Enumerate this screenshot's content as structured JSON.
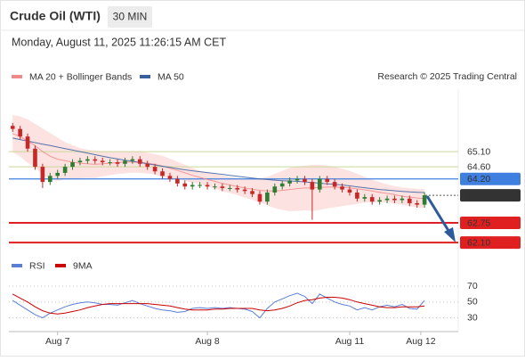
{
  "header": {
    "title": "Crude Oil (WTI)",
    "interval": "30 MIN",
    "datetime": "Monday, August 11, 2025 11:26:15 AM CET",
    "credit": "Research © 2025 Trading Central"
  },
  "chart_data": [
    {
      "type": "candlestick",
      "up_color": "#2e7d32",
      "down_color": "#c62828",
      "xlim": [
        -0.5,
        59.5
      ],
      "ylim": [
        61.72,
        66.87
      ],
      "open": [
        65.95,
        65.85,
        65.6,
        65.2,
        64.6,
        64.1,
        64.3,
        64.4,
        64.6,
        64.75,
        64.8,
        64.85,
        64.8,
        64.75,
        64.75,
        64.7,
        64.8,
        64.85,
        64.7,
        64.6,
        64.45,
        64.3,
        64.2,
        64.05,
        63.95,
        64.0,
        64.0,
        63.95,
        63.95,
        63.9,
        63.9,
        63.85,
        63.8,
        63.7,
        63.45,
        63.75,
        63.95,
        64.05,
        64.15,
        64.2,
        64.1,
        63.85,
        64.2,
        64.1,
        63.95,
        63.85,
        63.75,
        63.55,
        63.6,
        63.45,
        63.5,
        63.55,
        63.5,
        63.55,
        63.4,
        63.35
      ],
      "high": [
        66.05,
        65.95,
        65.7,
        65.3,
        64.7,
        64.4,
        64.5,
        64.7,
        64.85,
        64.9,
        64.95,
        64.95,
        64.9,
        64.85,
        64.85,
        64.9,
        64.95,
        64.95,
        64.8,
        64.7,
        64.55,
        64.4,
        64.3,
        64.15,
        64.1,
        64.1,
        64.1,
        64.05,
        64.05,
        64.0,
        64.0,
        63.95,
        63.9,
        63.8,
        63.85,
        64.05,
        64.15,
        64.25,
        64.3,
        64.3,
        64.2,
        64.3,
        64.3,
        64.2,
        64.05,
        63.95,
        63.85,
        63.7,
        63.7,
        63.6,
        63.65,
        63.65,
        63.65,
        63.65,
        63.5,
        63.76
      ],
      "low": [
        65.75,
        65.5,
        65.1,
        64.5,
        63.9,
        64.0,
        64.2,
        64.3,
        64.5,
        64.65,
        64.7,
        64.7,
        64.65,
        64.65,
        64.6,
        64.6,
        64.7,
        64.6,
        64.5,
        64.35,
        64.2,
        64.1,
        63.95,
        63.85,
        63.85,
        63.9,
        63.85,
        63.85,
        63.8,
        63.8,
        63.75,
        63.7,
        63.6,
        63.35,
        63.35,
        63.65,
        63.85,
        63.95,
        64.05,
        64.0,
        62.85,
        63.75,
        64.0,
        63.85,
        63.75,
        63.65,
        63.45,
        63.45,
        63.35,
        63.35,
        63.4,
        63.4,
        63.4,
        63.3,
        63.25,
        63.25
      ],
      "close": [
        65.85,
        65.6,
        65.2,
        64.6,
        64.1,
        64.3,
        64.4,
        64.6,
        64.75,
        64.8,
        64.85,
        64.8,
        64.75,
        64.75,
        64.7,
        64.8,
        64.85,
        64.7,
        64.6,
        64.45,
        64.3,
        64.2,
        64.05,
        63.95,
        64.0,
        64.0,
        63.95,
        63.95,
        63.9,
        63.9,
        63.85,
        63.8,
        63.7,
        63.45,
        63.75,
        63.95,
        64.05,
        64.15,
        64.2,
        64.1,
        63.85,
        64.2,
        64.1,
        63.95,
        63.85,
        63.75,
        63.55,
        63.6,
        63.45,
        63.5,
        63.55,
        63.5,
        63.55,
        63.4,
        63.35,
        63.66
      ],
      "series": [
        {
          "name": "MA 20 + Bollinger Bands",
          "color": "#f08a8a",
          "band_color": "#fde2e2",
          "values": [
            65.7,
            65.6,
            65.45,
            65.3,
            65.1,
            64.95,
            64.85,
            64.8,
            64.75,
            64.72,
            64.7,
            64.68,
            64.7,
            64.72,
            64.74,
            64.75,
            64.76,
            64.75,
            64.72,
            64.68,
            64.62,
            64.55,
            64.48,
            64.4,
            64.32,
            64.25,
            64.18,
            64.12,
            64.05,
            64.0,
            63.95,
            63.9,
            63.86,
            63.82,
            63.8,
            63.8,
            63.82,
            63.85,
            63.88,
            63.9,
            63.9,
            63.92,
            63.93,
            63.93,
            63.92,
            63.9,
            63.87,
            63.84,
            63.8,
            63.76,
            63.72,
            63.68,
            63.63,
            63.6,
            63.57,
            63.55
          ],
          "upper": [
            66.3,
            66.25,
            66.15,
            66.0,
            65.85,
            65.7,
            65.55,
            65.4,
            65.3,
            65.2,
            65.15,
            65.12,
            65.1,
            65.1,
            65.1,
            65.1,
            65.1,
            65.08,
            65.05,
            65.0,
            64.95,
            64.85,
            64.75,
            64.65,
            64.55,
            64.45,
            64.4,
            64.35,
            64.3,
            64.25,
            64.22,
            64.2,
            64.2,
            64.2,
            64.25,
            64.35,
            64.45,
            64.55,
            64.6,
            64.62,
            64.65,
            64.65,
            64.62,
            64.58,
            64.52,
            64.45,
            64.35,
            64.25,
            64.15,
            64.08,
            64.0,
            63.95,
            63.9,
            63.88,
            63.86,
            63.85
          ],
          "lower": [
            65.1,
            64.95,
            64.75,
            64.6,
            64.35,
            64.2,
            64.15,
            64.2,
            64.2,
            64.24,
            64.25,
            64.24,
            64.3,
            64.34,
            64.38,
            64.4,
            64.42,
            64.42,
            64.39,
            64.36,
            64.29,
            64.25,
            64.21,
            64.15,
            64.09,
            64.05,
            63.96,
            63.89,
            63.8,
            63.75,
            63.68,
            63.6,
            63.52,
            63.44,
            63.35,
            63.25,
            63.19,
            63.15,
            63.16,
            63.18,
            63.15,
            63.19,
            63.24,
            63.28,
            63.32,
            63.35,
            63.39,
            63.43,
            63.45,
            63.44,
            63.44,
            63.41,
            63.36,
            63.32,
            63.28,
            63.25
          ]
        },
        {
          "name": "MA 50",
          "color": "#3a5f9e",
          "values": [
            65.55,
            65.5,
            65.45,
            65.4,
            65.35,
            65.3,
            65.25,
            65.2,
            65.15,
            65.1,
            65.05,
            65.0,
            64.95,
            64.9,
            64.86,
            64.82,
            64.78,
            64.74,
            64.7,
            64.66,
            64.62,
            64.58,
            64.54,
            64.5,
            64.47,
            64.44,
            64.41,
            64.38,
            64.35,
            64.32,
            64.29,
            64.26,
            64.23,
            64.2,
            64.18,
            64.16,
            64.14,
            64.13,
            64.12,
            64.1,
            64.08,
            64.06,
            64.04,
            64.02,
            64.0,
            63.97,
            63.94,
            63.91,
            63.88,
            63.85,
            63.83,
            63.81,
            63.79,
            63.77,
            63.76,
            63.75
          ]
        }
      ],
      "levels": [
        {
          "value": 65.1,
          "label": "65.10",
          "color": "#7a9a2a",
          "style": "text"
        },
        {
          "value": 64.6,
          "label": "64.60",
          "color": "#7a9a2a",
          "style": "text"
        },
        {
          "value": 64.2,
          "label": "64.20",
          "color": "#3f7fe0",
          "style": "box"
        },
        {
          "value": 63.66,
          "label": "63.66",
          "color": "#333333",
          "style": "current"
        },
        {
          "value": 62.75,
          "label": "62.75",
          "color": "#e02020",
          "style": "box"
        },
        {
          "value": 62.1,
          "label": "62.10",
          "color": "#e02020",
          "style": "box"
        }
      ]
    },
    {
      "type": "line",
      "xlim": [
        -0.5,
        59.5
      ],
      "xticks": [
        {
          "value": 6,
          "label": "Aug 7"
        },
        {
          "value": 26,
          "label": "Aug 8"
        },
        {
          "value": 45,
          "label": "Aug 11"
        },
        {
          "value": 54.5,
          "label": "Aug 12"
        }
      ],
      "ylim": [
        15,
        88
      ],
      "yticks": [
        30,
        50,
        70
      ],
      "series": [
        {
          "name": "RSI",
          "color": "#5b7fd6",
          "values": [
            52,
            46,
            40,
            34,
            30,
            36,
            40,
            44,
            47,
            49,
            50,
            49,
            47,
            47,
            46,
            49,
            52,
            48,
            45,
            42,
            40,
            39,
            37,
            38,
            42,
            43,
            42,
            43,
            42,
            43,
            42,
            41,
            38,
            30,
            42,
            50,
            54,
            58,
            61,
            57,
            48,
            60,
            55,
            50,
            47,
            45,
            40,
            43,
            40,
            44,
            46,
            44,
            47,
            42,
            41,
            52
          ]
        },
        {
          "name": "9MA",
          "color": "#cc0000",
          "values": [
            60,
            55,
            50,
            44,
            39,
            36,
            35,
            36,
            38,
            40,
            43,
            45,
            47,
            48,
            48,
            48,
            48,
            48,
            48,
            47,
            46,
            45,
            43,
            41,
            40,
            40,
            40,
            41,
            41,
            42,
            42,
            42,
            42,
            40,
            39,
            40,
            42,
            45,
            49,
            52,
            53,
            55,
            56,
            56,
            55,
            53,
            50,
            48,
            46,
            44,
            43,
            43,
            44,
            44,
            44,
            45
          ]
        }
      ]
    }
  ]
}
